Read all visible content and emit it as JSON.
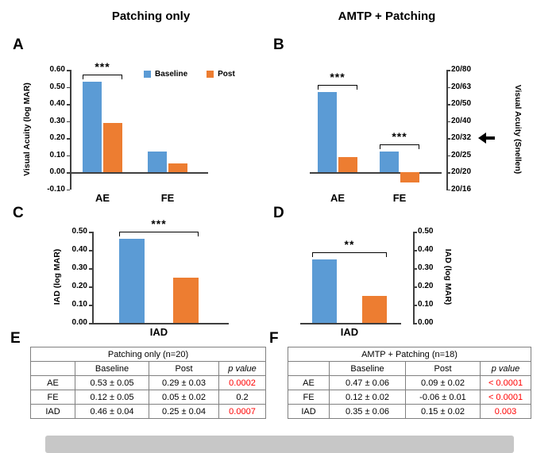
{
  "figure": {
    "column_titles": {
      "left": "Patching only",
      "right": "AMTP + Patching"
    }
  },
  "colors": {
    "baseline": "#5B9BD5",
    "post": "#ED7D31",
    "p_red": "#FF0000"
  },
  "legend": {
    "items": [
      {
        "label": "Baseline",
        "color_key": "baseline"
      },
      {
        "label": "Post",
        "color_key": "post"
      }
    ]
  },
  "chart_data": [
    {
      "panel": "A",
      "type": "bar",
      "ylabel": "Visual Acuity (log MAR)",
      "ylim": [
        -0.1,
        0.6
      ],
      "ytick_labels": [
        "0.60",
        "0.50",
        "0.40",
        "0.30",
        "0.20",
        "0.10",
        "0.00",
        "-0.10"
      ],
      "categories": [
        "AE",
        "FE"
      ],
      "series": [
        {
          "name": "Baseline",
          "color_key": "baseline",
          "values": [
            0.53,
            0.12
          ]
        },
        {
          "name": "Post",
          "color_key": "post",
          "values": [
            0.29,
            0.05
          ]
        }
      ],
      "significance": [
        {
          "category": "AE",
          "stars": "***"
        }
      ],
      "legend_shown": true
    },
    {
      "panel": "B",
      "type": "bar",
      "ylim": [
        -0.1,
        0.6
      ],
      "right_axis": {
        "label": "Visual Acuity (Snellen)",
        "tick_labels": [
          "20/80",
          "20/63",
          "20/50",
          "20/40",
          "20/32",
          "20/25",
          "20/20",
          "20/16"
        ],
        "arrow_at": "20/32"
      },
      "categories": [
        "AE",
        "FE"
      ],
      "series": [
        {
          "name": "Baseline",
          "color_key": "baseline",
          "values": [
            0.47,
            0.12
          ]
        },
        {
          "name": "Post",
          "color_key": "post",
          "values": [
            0.09,
            -0.06
          ]
        }
      ],
      "significance": [
        {
          "category": "AE",
          "stars": "***"
        },
        {
          "category": "FE",
          "stars": "***"
        }
      ],
      "legend_shown": false
    },
    {
      "panel": "C",
      "type": "bar",
      "ylabel": "IAD (log MAR)",
      "ylim": [
        0,
        0.5
      ],
      "ytick_labels": [
        "0.50",
        "0.40",
        "0.30",
        "0.20",
        "0.10",
        "0.00"
      ],
      "categories": [
        "IAD"
      ],
      "series": [
        {
          "name": "Baseline",
          "color_key": "baseline",
          "values": [
            0.46
          ]
        },
        {
          "name": "Post",
          "color_key": "post",
          "values": [
            0.25
          ]
        }
      ],
      "significance": [
        {
          "category": "IAD",
          "stars": "***"
        }
      ],
      "legend_shown": false
    },
    {
      "panel": "D",
      "type": "bar",
      "ylim": [
        0,
        0.5
      ],
      "right_axis": {
        "label": "IAD (log MAR)",
        "tick_labels": [
          "0.50",
          "0.40",
          "0.30",
          "0.20",
          "0.10",
          "0.00"
        ]
      },
      "categories": [
        "IAD"
      ],
      "series": [
        {
          "name": "Baseline",
          "color_key": "baseline",
          "values": [
            0.35
          ]
        },
        {
          "name": "Post",
          "color_key": "post",
          "values": [
            0.15
          ]
        }
      ],
      "significance": [
        {
          "category": "IAD",
          "stars": "**"
        }
      ],
      "legend_shown": false
    }
  ],
  "tables": [
    {
      "panel": "E",
      "title": "Patching only (n=20)",
      "columns": [
        "",
        "Baseline",
        "Post",
        "p value"
      ],
      "rows": [
        {
          "label": "AE",
          "baseline": "0.53 ± 0.05",
          "post": "0.29 ± 0.03",
          "p": "0.0002",
          "p_red": true
        },
        {
          "label": "FE",
          "baseline": "0.12 ± 0.05",
          "post": "0.05 ± 0.02",
          "p": "0.2",
          "p_red": false
        },
        {
          "label": "IAD",
          "baseline": "0.46 ± 0.04",
          "post": "0.25 ± 0.04",
          "p": "0.0007",
          "p_red": true
        }
      ]
    },
    {
      "panel": "F",
      "title": "AMTP  + Patching (n=18)",
      "columns": [
        "",
        "Baseline",
        "Post",
        "p value"
      ],
      "rows": [
        {
          "label": "AE",
          "baseline": "0.47 ± 0.06",
          "post": "0.09 ± 0.02",
          "p": "< 0.0001",
          "p_red": true
        },
        {
          "label": "FE",
          "baseline": "0.12 ± 0.02",
          "post": "-0.06 ± 0.01",
          "p": "< 0.0001",
          "p_red": true
        },
        {
          "label": "IAD",
          "baseline": "0.35 ± 0.06",
          "post": "0.15 ± 0.02",
          "p": "0.003",
          "p_red": true
        }
      ]
    }
  ]
}
